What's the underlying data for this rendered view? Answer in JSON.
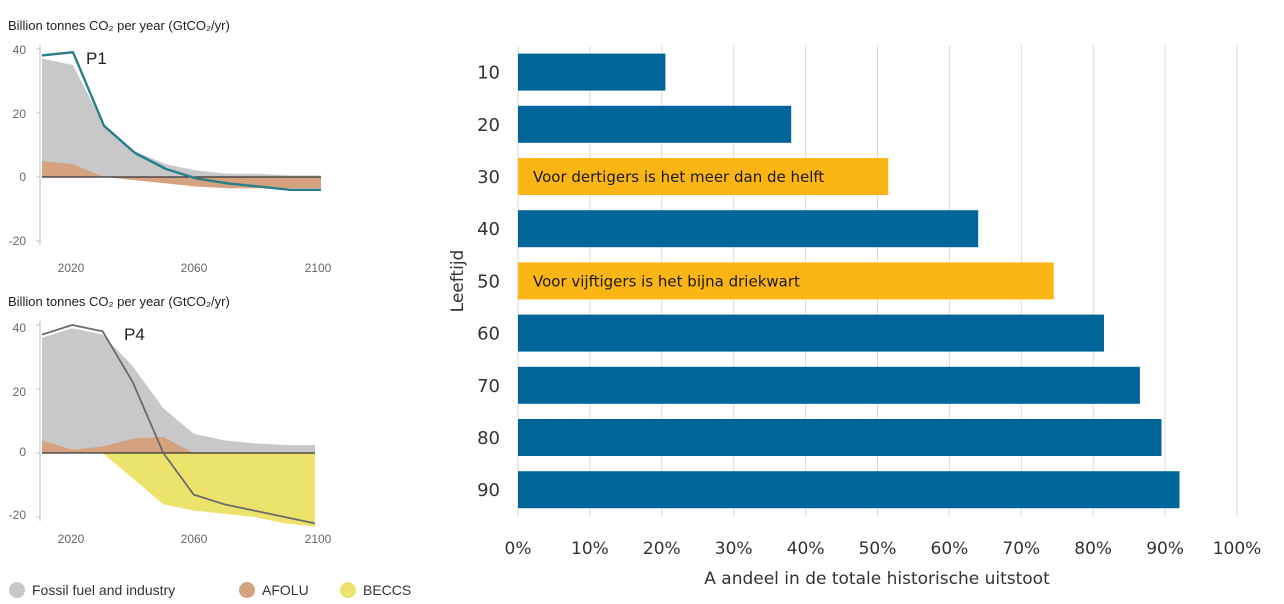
{
  "colors": {
    "fossil": "#c8c8c8",
    "afolu": "#d4a27f",
    "beccs": "#ece36c",
    "p1_line": "#2a7f86",
    "p4_line": "#6b6b6b",
    "bar": "#006699",
    "bar_highlight": "#fbb515",
    "grid": "#d9d9d9"
  },
  "chart_data": [
    {
      "type": "area",
      "title": "Billion tonnes CO₂ per year (GtCO₂/yr)",
      "panel_label": "P1",
      "x_ticks": [
        "2020",
        "2060",
        "2100"
      ],
      "y_ticks": [
        "40",
        "20",
        "0",
        "-20"
      ],
      "xlim": [
        2010,
        2100
      ],
      "ylim": [
        -20,
        40
      ],
      "fossil": {
        "x": [
          2010,
          2020,
          2030,
          2040,
          2050,
          2060,
          2070,
          2080,
          2090,
          2100
        ],
        "values": [
          37,
          35,
          16,
          8,
          4,
          2,
          1,
          1,
          0.5,
          0.5
        ]
      },
      "afolu_pos": {
        "x": [
          2010,
          2020,
          2030,
          2040,
          2050,
          2060,
          2070,
          2080,
          2090,
          2100
        ],
        "values": [
          5,
          4,
          0,
          0,
          0,
          0,
          0,
          0,
          0,
          0
        ]
      },
      "afolu_neg": {
        "x": [
          2010,
          2020,
          2030,
          2040,
          2050,
          2060,
          2070,
          2080,
          2090,
          2100
        ],
        "values": [
          0,
          0,
          0,
          -1,
          -2,
          -3,
          -3.5,
          -3.5,
          -3.5,
          -3.5
        ]
      },
      "net": {
        "name": "P1",
        "x": [
          2010,
          2020,
          2030,
          2040,
          2050,
          2060,
          2070,
          2080,
          2090,
          2100
        ],
        "values": [
          38,
          39,
          16,
          7.5,
          2.5,
          -0.5,
          -2,
          -3,
          -4,
          -4
        ]
      }
    },
    {
      "type": "area",
      "title": "Billion tonnes CO₂ per year (GtCO₂/yr)",
      "panel_label": "P4",
      "x_ticks": [
        "2020",
        "2060",
        "2100"
      ],
      "y_ticks": [
        "40",
        "20",
        "0",
        "-20"
      ],
      "xlim": [
        2010,
        2100
      ],
      "ylim": [
        -20,
        40
      ],
      "fossil": {
        "x": [
          2010,
          2020,
          2030,
          2040,
          2050,
          2060,
          2070,
          2080,
          2090,
          2100
        ],
        "values": [
          36,
          39,
          37,
          27,
          14,
          6,
          4,
          3,
          2.5,
          2.5
        ]
      },
      "afolu_pos": {
        "x": [
          2010,
          2020,
          2030,
          2040,
          2050,
          2060,
          2070,
          2080,
          2090,
          2100
        ],
        "values": [
          4,
          1,
          2,
          4.5,
          5,
          0,
          0,
          0,
          0,
          0
        ]
      },
      "beccs": {
        "x": [
          2010,
          2020,
          2030,
          2040,
          2050,
          2060,
          2070,
          2080,
          2090,
          2100
        ],
        "values": [
          0,
          0,
          0,
          -8,
          -16,
          -18,
          -19,
          -20,
          -22,
          -23
        ]
      },
      "net": {
        "name": "P4",
        "x": [
          2010,
          2020,
          2030,
          2040,
          2050,
          2060,
          2070,
          2080,
          2090,
          2100
        ],
        "values": [
          37,
          40,
          38,
          22,
          0,
          -13,
          -16,
          -18,
          -20,
          -22
        ]
      }
    },
    {
      "type": "bar",
      "orientation": "horizontal",
      "categories": [
        "10",
        "20",
        "30",
        "40",
        "50",
        "60",
        "70",
        "80",
        "90"
      ],
      "values": [
        20.5,
        38,
        51.5,
        64,
        74.5,
        81.5,
        86.5,
        89.5,
        92
      ],
      "highlight": [
        false,
        false,
        true,
        false,
        true,
        false,
        false,
        false,
        false
      ],
      "annotations": [
        "",
        "",
        "Voor dertigers is het meer dan de helft",
        "",
        "Voor vijftigers is het bijna driekwart",
        "",
        "",
        "",
        ""
      ],
      "xlabel": "A andeel in de totale historische uitstoot",
      "ylabel": "Leeftijd",
      "x_ticks": [
        "0%",
        "10%",
        "20%",
        "30%",
        "40%",
        "50%",
        "60%",
        "70%",
        "80%",
        "90%",
        "100%"
      ],
      "xlim": [
        0,
        100
      ],
      "grid": true
    }
  ],
  "legend": [
    {
      "label": "Fossil fuel and industry",
      "color": "#c8c8c8"
    },
    {
      "label": "AFOLU",
      "color": "#d4a27f"
    },
    {
      "label": "BECCS",
      "color": "#ece36c"
    }
  ]
}
